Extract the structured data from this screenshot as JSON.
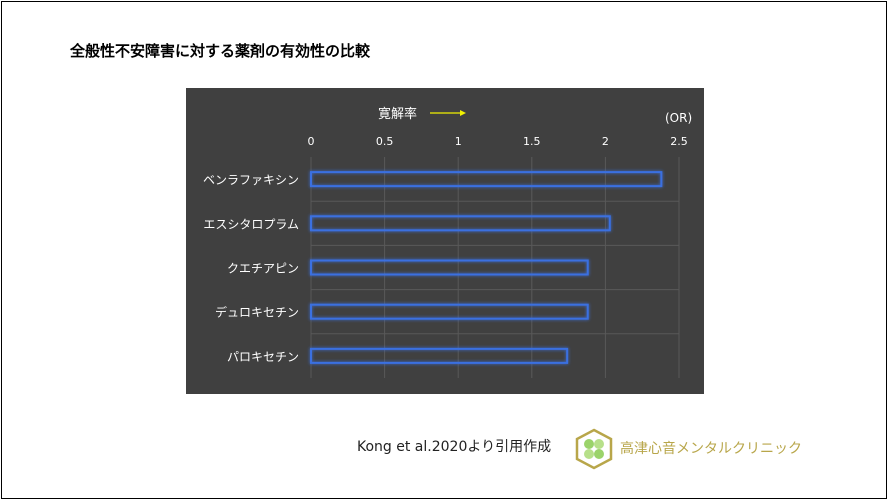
{
  "title": "全般性不安障害に対する薬剤の有効性の比較",
  "source": "Kong et al.2020より引用作成",
  "clinic_name": "高津心音メンタルクリニック",
  "chart_data": {
    "type": "bar",
    "orientation": "horizontal",
    "annotation": "寛解率",
    "annotation_arrow_color": "#f0f000",
    "unit_label": "(OR)",
    "categories": [
      "ベンラファキシン",
      "エスシタロプラム",
      "クエチアピン",
      "デュロキセチン",
      "パロキセチン"
    ],
    "values": [
      2.38,
      2.03,
      1.88,
      1.88,
      1.74
    ],
    "xlim": [
      0,
      2.5
    ],
    "ticks": [
      "0",
      "0.5",
      "1",
      "1.5",
      "2",
      "2.5"
    ],
    "tick_values": [
      0,
      0.5,
      1,
      1.5,
      2,
      2.5
    ],
    "grid": true,
    "bar_outline_color": "#3a6fe0",
    "background_color": "#404040"
  }
}
